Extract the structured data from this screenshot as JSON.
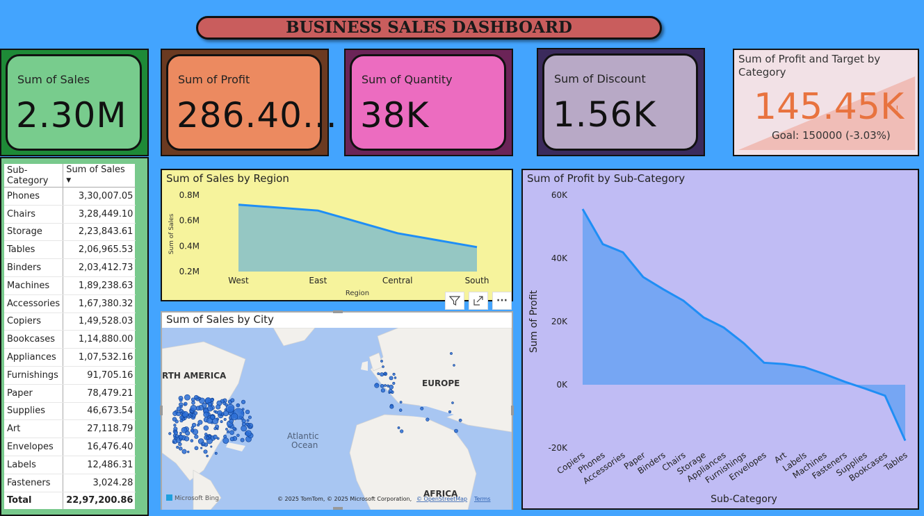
{
  "title": "BUSINESS SALES DASHBOARD",
  "kpis": [
    {
      "label": "Sum of Sales",
      "value": "2.30M",
      "outer": "#1e8a37",
      "inner": "#78cc8d"
    },
    {
      "label": "Sum of Profit",
      "value": "286.40...",
      "outer": "#6b3a21",
      "inner": "#ec8a60"
    },
    {
      "label": "Sum of Quantity",
      "value": "38K",
      "outer": "#6b2457",
      "inner": "#ec6cc0"
    },
    {
      "label": "Sum of Discount",
      "value": "1.56K",
      "outer": "#3b2a5c",
      "inner": "#b8a9c6"
    }
  ],
  "gauge": {
    "title": "Sum of Profit and Target by Category",
    "value": "145.45K",
    "marker": "!",
    "goal": "Goal: 150000 (-3.03%)",
    "fill_fraction": 0.97
  },
  "table": {
    "headers": [
      "Sub-Category",
      "Sum of Sales"
    ],
    "sort_icon": "sort-desc-icon",
    "rows": [
      [
        "Phones",
        "3,30,007.05"
      ],
      [
        "Chairs",
        "3,28,449.10"
      ],
      [
        "Storage",
        "2,23,843.61"
      ],
      [
        "Tables",
        "2,06,965.53"
      ],
      [
        "Binders",
        "2,03,412.73"
      ],
      [
        "Machines",
        "1,89,238.63"
      ],
      [
        "Accessories",
        "1,67,380.32"
      ],
      [
        "Copiers",
        "1,49,528.03"
      ],
      [
        "Bookcases",
        "1,14,880.00"
      ],
      [
        "Appliances",
        "1,07,532.16"
      ],
      [
        "Furnishings",
        "91,705.16"
      ],
      [
        "Paper",
        "78,479.21"
      ],
      [
        "Supplies",
        "46,673.54"
      ],
      [
        "Art",
        "27,118.79"
      ],
      [
        "Envelopes",
        "16,476.40"
      ],
      [
        "Labels",
        "12,486.31"
      ],
      [
        "Fasteners",
        "3,024.28"
      ]
    ],
    "total": [
      "Total",
      "22,97,200.86"
    ]
  },
  "region_chart": {
    "title": "Sum of Sales by Region",
    "xlabel": "Region",
    "ylabel": "Sum of Sales",
    "yticks": [
      "0.2M",
      "0.4M",
      "0.6M",
      "0.8M"
    ],
    "chart_data": {
      "type": "area",
      "categories": [
        "West",
        "East",
        "Central",
        "South"
      ],
      "values": [
        0.725,
        0.679,
        0.501,
        0.392
      ],
      "units": "M",
      "ylim": [
        0.2,
        0.8
      ]
    }
  },
  "visual_header": {
    "icons": [
      "filter-icon",
      "focus-mode-icon",
      "more-options-icon"
    ],
    "more_label": "···"
  },
  "map": {
    "title": "Sum of Sales by City",
    "labels": {
      "na": "RTH AMERICA",
      "eu": "EUROPE",
      "ocean1": "Atlantic",
      "ocean2": "Ocean",
      "af": "AFRICA"
    },
    "logo": "Microsoft Bing",
    "attribution": "© 2025 TomTom, © 2025 Microsoft Corporation,",
    "osm": "© OpenStreetMap",
    "terms": "Terms"
  },
  "profit_chart": {
    "title": "Sum of Profit by Sub-Category",
    "xlabel": "Sub-Category",
    "ylabel": "Sum of Profit",
    "yticks": [
      "-20K",
      "0K",
      "20K",
      "40K",
      "60K"
    ],
    "chart_data": {
      "type": "area",
      "categories": [
        "Copiers",
        "Phones",
        "Accessories",
        "Paper",
        "Binders",
        "Chairs",
        "Storage",
        "Appliances",
        "Furnishings",
        "Envelopes",
        "Art",
        "Labels",
        "Machines",
        "Fasteners",
        "Supplies",
        "Bookcases",
        "Tables"
      ],
      "values": [
        55.6,
        44.5,
        41.9,
        34.1,
        30.2,
        26.6,
        21.3,
        18.1,
        13.1,
        6.96,
        6.53,
        5.55,
        3.38,
        0.95,
        -1.19,
        -3.47,
        -17.7
      ],
      "units": "K",
      "ylim": [
        -20,
        60
      ]
    }
  }
}
